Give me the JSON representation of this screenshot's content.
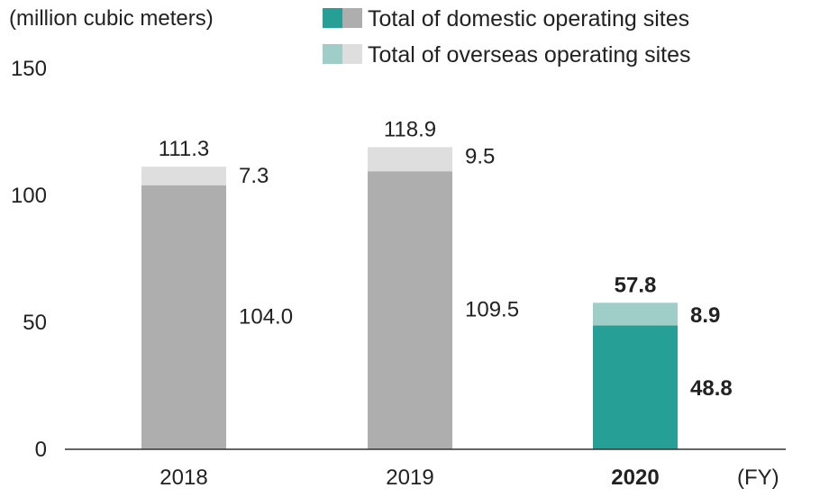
{
  "chart_data": {
    "type": "bar",
    "stacked": true,
    "ylabel": "(million cubic meters)",
    "xunit": "(FY)",
    "categories": [
      "2018",
      "2019",
      "2020"
    ],
    "highlight_category": "2020",
    "ylim": [
      0,
      150
    ],
    "yticks": [
      0,
      50,
      100,
      150
    ],
    "series": [
      {
        "name": "Total of domestic operating sites",
        "values": [
          104.0,
          109.5,
          48.8
        ],
        "labels": [
          "104.0",
          "109.5",
          "48.8"
        ],
        "colors": [
          "#aeaeae",
          "#aeaeae",
          "#26a096"
        ]
      },
      {
        "name": "Total of overseas operating sites",
        "values": [
          7.3,
          9.5,
          8.9
        ],
        "labels": [
          "7.3",
          "9.5",
          "8.9"
        ],
        "colors": [
          "#dedede",
          "#dedede",
          "#9fcdc8"
        ]
      }
    ],
    "totals": [
      "111.3",
      "118.9",
      "57.8"
    ],
    "legend": {
      "placement": "top-right",
      "entries": [
        {
          "label": "Total of domestic operating sites",
          "colors": [
            "#26a096",
            "#aeaeae"
          ]
        },
        {
          "label": "Total of overseas operating sites",
          "colors": [
            "#9fcdc8",
            "#dedede"
          ]
        }
      ]
    },
    "grid": false,
    "label_colors": {
      "highlight_domestic": "#26a096",
      "highlight_overseas": "#9fcdc8",
      "default": "#222222"
    }
  }
}
